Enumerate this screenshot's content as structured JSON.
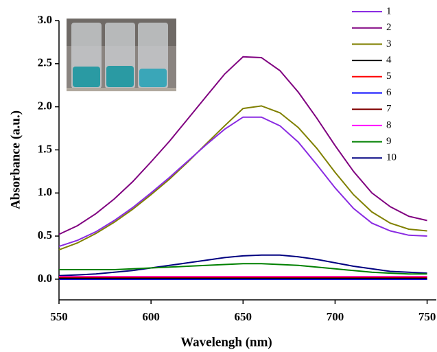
{
  "chart_data": {
    "type": "line",
    "x_label": "Wavelengh (nm)",
    "y_label": "Absorbance (a.u.)",
    "x": [
      550,
      560,
      570,
      580,
      590,
      600,
      610,
      620,
      630,
      640,
      650,
      660,
      670,
      680,
      690,
      700,
      710,
      720,
      730,
      740,
      750
    ],
    "xlim": [
      550,
      755
    ],
    "xticks": [
      550,
      600,
      650,
      700,
      750
    ],
    "ylim": [
      -0.24,
      3.0
    ],
    "yticks": [
      {
        "value": 0,
        "label": "0.0"
      },
      {
        "value": 0.5,
        "label": "0.5"
      },
      {
        "value": 1,
        "label": "1.0"
      },
      {
        "value": 1.5,
        "label": "1.5"
      },
      {
        "value": 2,
        "label": "2.0"
      },
      {
        "value": 2.5,
        "label": "2.5"
      },
      {
        "value": 3,
        "label": "3.0"
      }
    ],
    "legend": "upper right",
    "series": [
      {
        "name": "1",
        "color": "#8a2be2",
        "values": [
          0.38,
          0.45,
          0.55,
          0.68,
          0.83,
          1.0,
          1.18,
          1.37,
          1.56,
          1.74,
          1.88,
          1.88,
          1.78,
          1.59,
          1.33,
          1.06,
          0.82,
          0.65,
          0.56,
          0.51,
          0.5
        ]
      },
      {
        "name": "2",
        "color": "#800080",
        "values": [
          0.52,
          0.62,
          0.76,
          0.93,
          1.13,
          1.36,
          1.6,
          1.86,
          2.12,
          2.38,
          2.58,
          2.57,
          2.42,
          2.17,
          1.87,
          1.55,
          1.25,
          1.0,
          0.84,
          0.73,
          0.68
        ]
      },
      {
        "name": "3",
        "color": "#808000",
        "values": [
          0.34,
          0.42,
          0.53,
          0.66,
          0.81,
          0.98,
          1.16,
          1.36,
          1.57,
          1.78,
          1.98,
          2.01,
          1.93,
          1.76,
          1.52,
          1.24,
          0.98,
          0.78,
          0.65,
          0.58,
          0.56
        ]
      },
      {
        "name": "4",
        "color": "#000000",
        "values": [
          0.01,
          0.01,
          0.01,
          0.01,
          0.01,
          0.01,
          0.01,
          0.01,
          0.01,
          0.01,
          0.01,
          0.01,
          0.01,
          0.01,
          0.01,
          0.01,
          0.01,
          0.01,
          0.01,
          0.01,
          0.01
        ]
      },
      {
        "name": "5",
        "color": "#ff0000",
        "values": [
          0.02,
          0.02,
          0.02,
          0.02,
          0.02,
          0.02,
          0.02,
          0.02,
          0.02,
          0.02,
          0.02,
          0.02,
          0.02,
          0.02,
          0.02,
          0.02,
          0.02,
          0.02,
          0.02,
          0.02,
          0.02
        ]
      },
      {
        "name": "6",
        "color": "#0000ff",
        "values": [
          0.0,
          0.0,
          0.0,
          0.0,
          0.0,
          0.0,
          0.0,
          0.0,
          0.0,
          0.0,
          0.0,
          0.0,
          0.0,
          0.0,
          0.0,
          0.0,
          0.0,
          0.0,
          0.0,
          0.0,
          0.0
        ]
      },
      {
        "name": "7",
        "color": "#800000",
        "values": [
          0.0,
          0.0,
          0.0,
          0.0,
          0.0,
          0.0,
          0.0,
          0.0,
          0.0,
          0.0,
          0.0,
          0.0,
          0.0,
          0.0,
          0.0,
          0.0,
          0.0,
          0.0,
          0.0,
          0.0,
          0.0
        ]
      },
      {
        "name": "8",
        "color": "#ff00ff",
        "values": [
          0.03,
          0.03,
          0.03,
          0.03,
          0.03,
          0.03,
          0.03,
          0.03,
          0.03,
          0.03,
          0.03,
          0.03,
          0.03,
          0.03,
          0.03,
          0.03,
          0.03,
          0.03,
          0.03,
          0.03,
          0.03
        ]
      },
      {
        "name": "9",
        "color": "#008000",
        "values": [
          0.11,
          0.11,
          0.11,
          0.11,
          0.12,
          0.13,
          0.14,
          0.15,
          0.16,
          0.17,
          0.18,
          0.18,
          0.17,
          0.16,
          0.14,
          0.12,
          0.1,
          0.08,
          0.07,
          0.06,
          0.06
        ]
      },
      {
        "name": "10",
        "color": "#000080",
        "values": [
          0.04,
          0.05,
          0.06,
          0.08,
          0.1,
          0.13,
          0.16,
          0.19,
          0.22,
          0.25,
          0.27,
          0.28,
          0.28,
          0.26,
          0.23,
          0.19,
          0.15,
          0.12,
          0.09,
          0.08,
          0.07
        ]
      }
    ]
  }
}
